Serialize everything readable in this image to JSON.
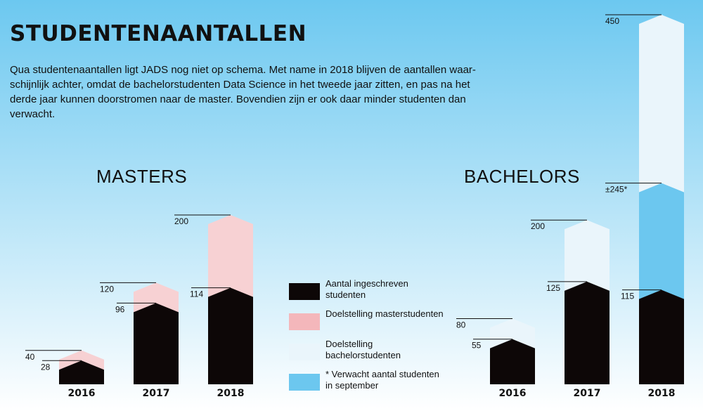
{
  "header": {
    "title": "STUDENTENAANTALLEN",
    "intro": "Qua studentenaantallen ligt JADS nog niet op schema. Met name in 2018 blijven de aantallen waar-schijnlijk achter, omdat de bachelorstudenten Data Science in het tweede jaar zitten, en pas na het derde jaar kunnen doorstromen naar de master. Bovendien zijn er ook daar minder studenten dan verwacht."
  },
  "colors": {
    "background_top": "#6cc8f0",
    "background_bottom": "#ffffff",
    "enrolled": "#0d0707",
    "target_masters": "#f7d1d3",
    "target_bachelors": "#eaf5fb",
    "expected_september": "#6cc7ef",
    "legend_target_masters": "#f4b7bb"
  },
  "legend": [
    {
      "key": "enrolled",
      "label": "Aantal ingeschreven studenten",
      "color": "#0d0707"
    },
    {
      "key": "target_masters",
      "label": "Doelstelling masterstudenten",
      "color": "#f4b7bb"
    },
    {
      "key": "target_bachelors",
      "label": "Doelstelling bachelorstudenten",
      "color": "#eaf5fb"
    },
    {
      "key": "expected_september",
      "label": "* Verwacht aantal studenten in september",
      "color": "#6cc7ef"
    }
  ],
  "chart_data": [
    {
      "type": "bar",
      "title": "MASTERS",
      "categories": [
        "2016",
        "2017",
        "2018"
      ],
      "series": [
        {
          "name": "Aantal ingeschreven studenten",
          "values": [
            28,
            96,
            114
          ]
        },
        {
          "name": "Doelstelling masterstudenten",
          "values": [
            40,
            120,
            200
          ]
        }
      ],
      "value_labels": {
        "enrolled": [
          "28",
          "96",
          "114"
        ],
        "target": [
          "40",
          "120",
          "200"
        ]
      }
    },
    {
      "type": "bar",
      "title": "BACHELORS",
      "categories": [
        "2016",
        "2017",
        "2018"
      ],
      "series": [
        {
          "name": "Aantal ingeschreven studenten",
          "values": [
            55,
            125,
            115
          ]
        },
        {
          "name": "Doelstelling bachelorstudenten",
          "values": [
            80,
            200,
            450
          ]
        },
        {
          "name": "* Verwacht aantal studenten in september",
          "values": [
            null,
            null,
            245
          ]
        }
      ],
      "value_labels": {
        "enrolled": [
          "55",
          "125",
          "115"
        ],
        "target": [
          "80",
          "200",
          "450"
        ],
        "expected": [
          null,
          null,
          "±245*"
        ]
      }
    }
  ]
}
